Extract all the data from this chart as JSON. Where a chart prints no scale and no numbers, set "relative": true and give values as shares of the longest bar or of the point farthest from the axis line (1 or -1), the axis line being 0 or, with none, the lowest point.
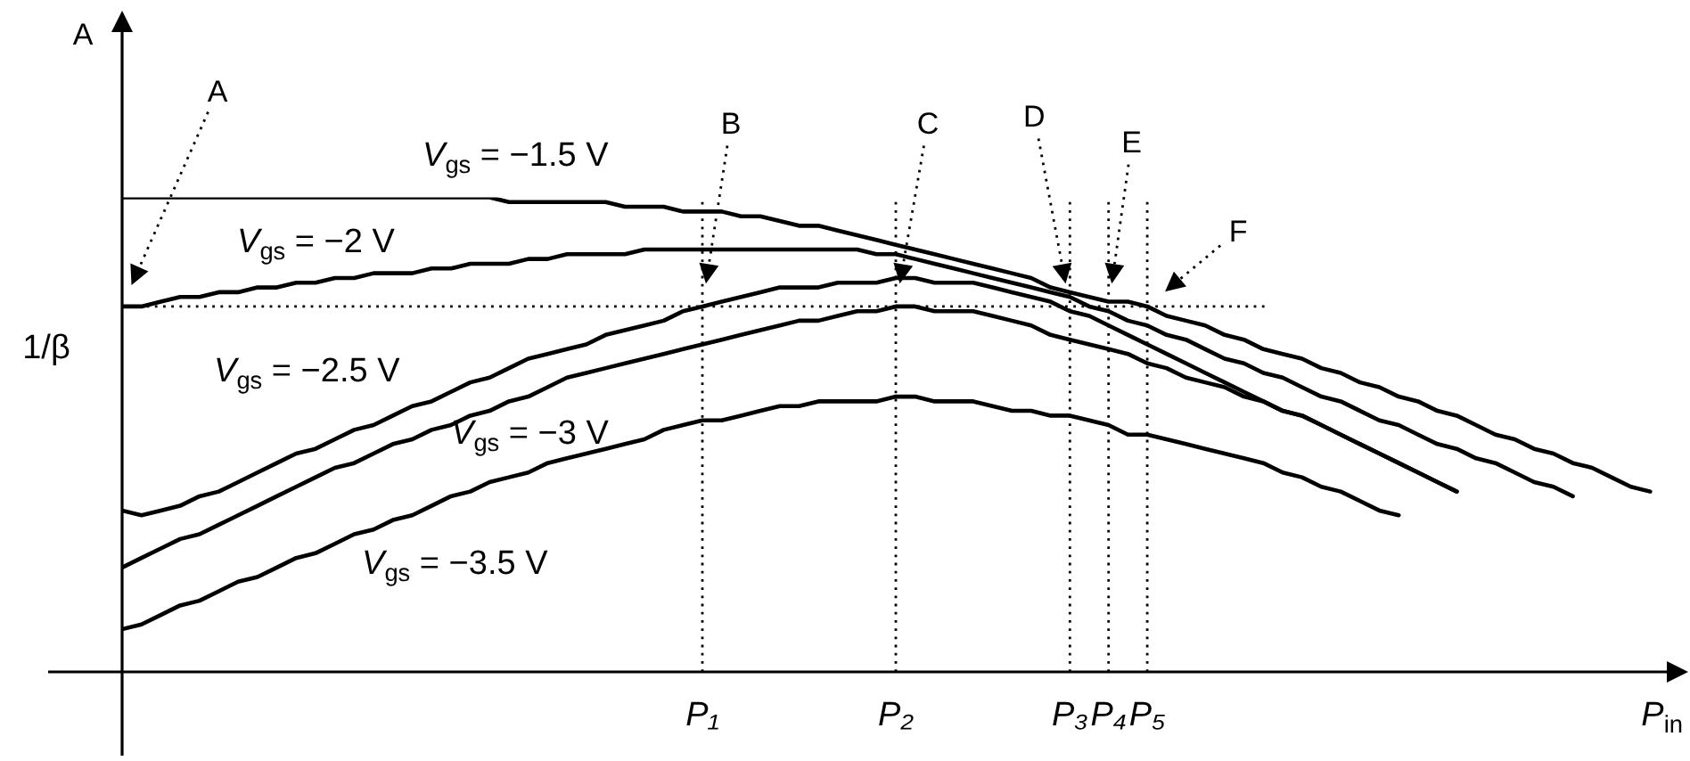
{
  "chart_data": {
    "type": "line",
    "relative": true,
    "xlabel": "P$_{in}$",
    "ylabel": "A",
    "categories": [
      null,
      null,
      null,
      null,
      null,
      null,
      null,
      null,
      null,
      null,
      null,
      null,
      null,
      null,
      null,
      null,
      null,
      null,
      null,
      null,
      null,
      null,
      null,
      null,
      null,
      null,
      null,
      null,
      null,
      null,
      "P₁",
      null,
      null,
      null,
      null,
      null,
      null,
      null,
      null,
      null,
      "P₂",
      null,
      null,
      null,
      null,
      null,
      null,
      null,
      null,
      "P₃",
      null,
      "P₄",
      null,
      "P₅",
      null,
      null,
      null,
      null,
      null,
      null,
      null,
      null,
      null,
      null,
      null,
      null,
      null,
      null,
      null,
      null,
      null,
      null,
      null,
      null,
      null,
      null,
      null,
      null,
      null,
      null,
      null
    ],
    "series": [
      {
        "name": "V$_{gs}$ = −1.5 V",
        "color": "#000000",
        "values": [
          1,
          1,
          1,
          1,
          1,
          1,
          1,
          1,
          1,
          1,
          1,
          1,
          1,
          1,
          1,
          1,
          1,
          1,
          1,
          1,
          0.99,
          0.99,
          0.99,
          0.99,
          0.99,
          0.99,
          0.98,
          0.98,
          0.98,
          0.97,
          0.97,
          0.97,
          0.96,
          0.96,
          0.95,
          0.94,
          0.94,
          0.93,
          0.92,
          0.91,
          0.9,
          0.89,
          0.88,
          0.87,
          0.86,
          0.85,
          0.84,
          0.83,
          0.81,
          0.8,
          0.79,
          0.78,
          0.78,
          0.77,
          0.75,
          0.74,
          0.73,
          0.71,
          0.7,
          0.68,
          0.67,
          0.66,
          0.64,
          0.63,
          0.61,
          0.6,
          0.58,
          0.57,
          0.55,
          0.54,
          0.52,
          0.5,
          0.49,
          0.47,
          0.46,
          0.44,
          0.43,
          0.41,
          0.39,
          0.38,
          null
        ]
      },
      {
        "name": "V$_{gs}$ = −2 V",
        "color": "#000000",
        "values": [
          0.77,
          0.77,
          0.78,
          0.79,
          0.79,
          0.8,
          0.8,
          0.81,
          0.81,
          0.82,
          0.82,
          0.83,
          0.83,
          0.84,
          0.84,
          0.84,
          0.85,
          0.85,
          0.86,
          0.86,
          0.86,
          0.87,
          0.87,
          0.88,
          0.88,
          0.88,
          0.88,
          0.89,
          0.89,
          0.89,
          0.89,
          0.89,
          0.89,
          0.89,
          0.89,
          0.89,
          0.89,
          0.89,
          0.89,
          0.88,
          0.88,
          0.87,
          0.86,
          0.85,
          0.84,
          0.83,
          0.82,
          0.81,
          0.8,
          0.79,
          0.77,
          0.76,
          0.74,
          0.73,
          0.71,
          0.7,
          0.68,
          0.66,
          0.65,
          0.63,
          0.62,
          0.6,
          0.58,
          0.57,
          0.55,
          0.53,
          0.52,
          0.5,
          0.48,
          0.47,
          0.45,
          0.44,
          0.42,
          0.4,
          0.39,
          0.37,
          null,
          null,
          null,
          null,
          null
        ]
      },
      {
        "name": "V$_{gs}$ = −2.5 V",
        "color": "#000000",
        "values": [
          0.34,
          0.33,
          0.34,
          0.35,
          0.37,
          0.38,
          0.4,
          0.42,
          0.44,
          0.46,
          0.47,
          0.49,
          0.51,
          0.52,
          0.54,
          0.56,
          0.57,
          0.59,
          0.61,
          0.62,
          0.64,
          0.66,
          0.67,
          0.68,
          0.69,
          0.71,
          0.72,
          0.73,
          0.74,
          0.76,
          0.77,
          0.78,
          0.79,
          0.8,
          0.81,
          0.81,
          0.81,
          0.82,
          0.82,
          0.82,
          0.83,
          0.83,
          0.82,
          0.82,
          0.82,
          0.81,
          0.8,
          0.79,
          0.78,
          0.76,
          0.75,
          0.73,
          0.71,
          0.69,
          0.67,
          0.65,
          0.63,
          0.61,
          0.59,
          0.57,
          0.55,
          0.54,
          0.52,
          0.5,
          0.48,
          0.46,
          0.44,
          0.42,
          0.4,
          0.38,
          null,
          null,
          null,
          null,
          null,
          null,
          null,
          null,
          null,
          null,
          null
        ]
      },
      {
        "name": "V$_{gs}$ = −3 V",
        "color": "#000000",
        "values": [
          0.22,
          0.24,
          0.26,
          0.28,
          0.29,
          0.31,
          0.33,
          0.35,
          0.37,
          0.39,
          0.41,
          0.43,
          0.44,
          0.46,
          0.48,
          0.49,
          0.51,
          0.52,
          0.54,
          0.55,
          0.57,
          0.58,
          0.6,
          0.62,
          0.63,
          0.64,
          0.65,
          0.66,
          0.67,
          0.68,
          0.69,
          0.7,
          0.71,
          0.72,
          0.73,
          0.74,
          0.74,
          0.75,
          0.76,
          0.76,
          0.77,
          0.77,
          0.76,
          0.76,
          0.76,
          0.75,
          0.74,
          0.73,
          0.71,
          0.7,
          0.69,
          0.68,
          0.67,
          0.65,
          0.64,
          0.62,
          0.61,
          0.6,
          0.58,
          0.57,
          0.55,
          0.54,
          0.52,
          0.5,
          0.48,
          0.46,
          0.44,
          0.42,
          0.4,
          0.38,
          null,
          null,
          null,
          null,
          null,
          null,
          null,
          null,
          null,
          null,
          null
        ]
      },
      {
        "name": "V$_{gs}$ = −3.5 V",
        "color": "#000000",
        "values": [
          0.09,
          0.1,
          0.12,
          0.14,
          0.15,
          0.17,
          0.19,
          0.2,
          0.22,
          0.24,
          0.25,
          0.27,
          0.29,
          0.3,
          0.32,
          0.33,
          0.35,
          0.37,
          0.38,
          0.4,
          0.41,
          0.42,
          0.44,
          0.45,
          0.46,
          0.47,
          0.48,
          0.49,
          0.51,
          0.52,
          0.53,
          0.53,
          0.54,
          0.55,
          0.56,
          0.56,
          0.57,
          0.57,
          0.57,
          0.57,
          0.58,
          0.58,
          0.57,
          0.57,
          0.57,
          0.56,
          0.55,
          0.55,
          0.54,
          0.54,
          0.53,
          0.52,
          0.5,
          0.5,
          0.49,
          0.48,
          0.47,
          0.46,
          0.45,
          0.44,
          0.42,
          0.41,
          0.39,
          0.38,
          0.36,
          0.34,
          0.33,
          null,
          null,
          null,
          null,
          null,
          null,
          null,
          null,
          null,
          null,
          null,
          null,
          null,
          null
        ]
      }
    ],
    "ref_lines": [
      {
        "axis": "y",
        "value": 0.77,
        "label": "1/β",
        "line_style": "dotted"
      },
      {
        "axis": "x",
        "value": "P₁",
        "line_style": "dotted"
      },
      {
        "axis": "x",
        "value": "P₂",
        "line_style": "dotted"
      },
      {
        "axis": "x",
        "value": "P₃",
        "line_style": "dotted"
      },
      {
        "axis": "x",
        "value": "P₄",
        "line_style": "dotted"
      },
      {
        "axis": "x",
        "value": "P₅",
        "line_style": "dotted"
      }
    ],
    "annotations": [
      "A",
      "B",
      "C",
      "D",
      "E",
      "F"
    ]
  }
}
